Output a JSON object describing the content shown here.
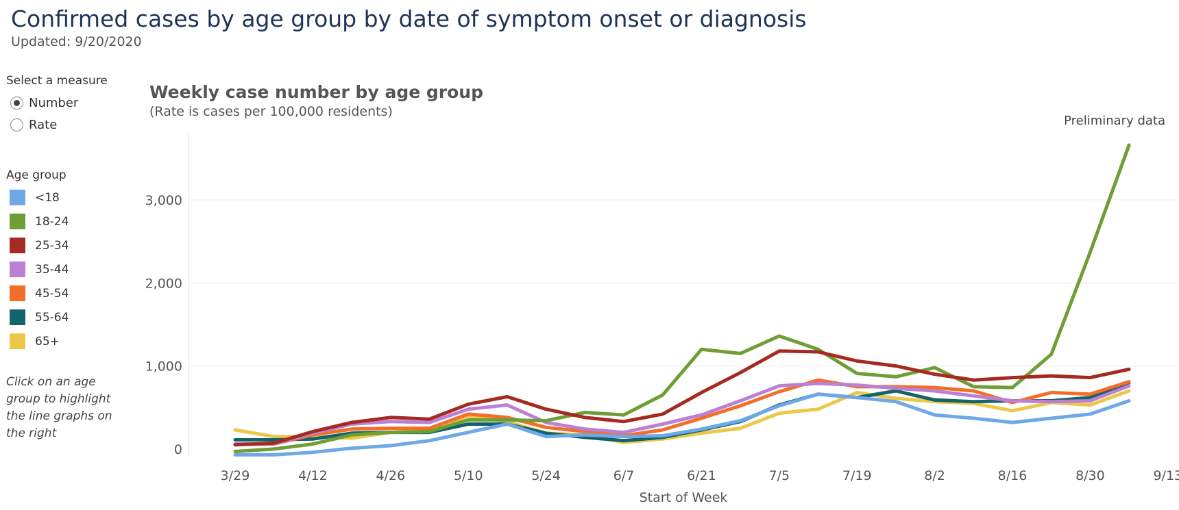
{
  "header": {
    "title": "Confirmed cases by age group by date of symptom onset or diagnosis",
    "updated": "Updated: 9/20/2020"
  },
  "measure": {
    "title": "Select a measure",
    "options": [
      {
        "label": "Number",
        "selected": true
      },
      {
        "label": "Rate",
        "selected": false
      }
    ]
  },
  "legend": {
    "title": "Age group",
    "items": [
      {
        "label": "<18",
        "color": "#6fa8e6"
      },
      {
        "label": "18-24",
        "color": "#6e9e35"
      },
      {
        "label": "25-34",
        "color": "#a52a21"
      },
      {
        "label": "35-44",
        "color": "#bb80d4"
      },
      {
        "label": "45-54",
        "color": "#f26f2a"
      },
      {
        "label": "55-64",
        "color": "#13646a"
      },
      {
        "label": "65+",
        "color": "#ebc84a"
      }
    ],
    "hint": "Click on an age group to highlight the line graphs on the right"
  },
  "chart_data": {
    "type": "line",
    "title": "Weekly case number by age group",
    "subtitle": "(Rate is cases per 100,000 residents)",
    "annotation": "Preliminary data",
    "xlabel": "Start of Week",
    "ylabel": "",
    "x": [
      "3/29",
      "4/5",
      "4/12",
      "4/19",
      "4/26",
      "5/3",
      "5/10",
      "5/17",
      "5/24",
      "5/31",
      "6/7",
      "6/14",
      "6/21",
      "6/28",
      "7/5",
      "7/12",
      "7/19",
      "7/26",
      "8/2",
      "8/9",
      "8/16",
      "8/23",
      "8/30",
      "9/6"
    ],
    "x_ticks": [
      "3/29",
      "4/12",
      "4/26",
      "5/10",
      "5/24",
      "6/7",
      "6/21",
      "7/5",
      "7/19",
      "8/2",
      "8/16",
      "8/30",
      "9/13"
    ],
    "y_ticks": [
      0,
      1000,
      2000,
      3000
    ],
    "y_tick_labels": [
      "0",
      "1,000",
      "2,000",
      "3,000"
    ],
    "ylim": [
      -100,
      3800
    ],
    "grid": "horizontal",
    "series": [
      {
        "name": "65+",
        "color": "#ebc84a",
        "values": [
          230,
          150,
          150,
          130,
          200,
          230,
          400,
          330,
          190,
          170,
          80,
          120,
          190,
          250,
          430,
          480,
          680,
          610,
          570,
          550,
          460,
          560,
          530,
          700
        ]
      },
      {
        "name": "55-64",
        "color": "#13646a",
        "values": [
          110,
          110,
          120,
          190,
          200,
          200,
          300,
          300,
          190,
          140,
          100,
          140,
          230,
          330,
          530,
          660,
          620,
          700,
          590,
          570,
          580,
          580,
          620,
          800
        ]
      },
      {
        "name": "45-54",
        "color": "#f26f2a",
        "values": [
          60,
          60,
          170,
          240,
          250,
          250,
          420,
          380,
          260,
          210,
          160,
          230,
          370,
          520,
          690,
          830,
          750,
          750,
          740,
          700,
          560,
          680,
          660,
          810
        ]
      },
      {
        "name": "35-44",
        "color": "#bb80d4",
        "values": [
          60,
          60,
          190,
          300,
          330,
          320,
          480,
          530,
          320,
          240,
          200,
          300,
          410,
          580,
          760,
          790,
          770,
          730,
          700,
          640,
          580,
          570,
          580,
          760
        ]
      },
      {
        "name": "<18",
        "color": "#6fa8e6",
        "values": [
          -70,
          -70,
          -40,
          10,
          40,
          100,
          200,
          300,
          150,
          170,
          150,
          160,
          240,
          340,
          520,
          660,
          620,
          570,
          410,
          370,
          320,
          370,
          420,
          580
        ]
      },
      {
        "name": "18-24",
        "color": "#6e9e35",
        "values": [
          -30,
          0,
          60,
          170,
          200,
          210,
          350,
          350,
          340,
          440,
          410,
          650,
          1200,
          1150,
          1360,
          1200,
          910,
          870,
          980,
          750,
          740,
          1140,
          2370,
          3660
        ]
      },
      {
        "name": "25-34",
        "color": "#a52a21",
        "values": [
          50,
          70,
          210,
          320,
          380,
          360,
          540,
          630,
          480,
          380,
          330,
          420,
          680,
          920,
          1180,
          1170,
          1060,
          1000,
          900,
          830,
          860,
          880,
          860,
          960
        ]
      }
    ]
  }
}
